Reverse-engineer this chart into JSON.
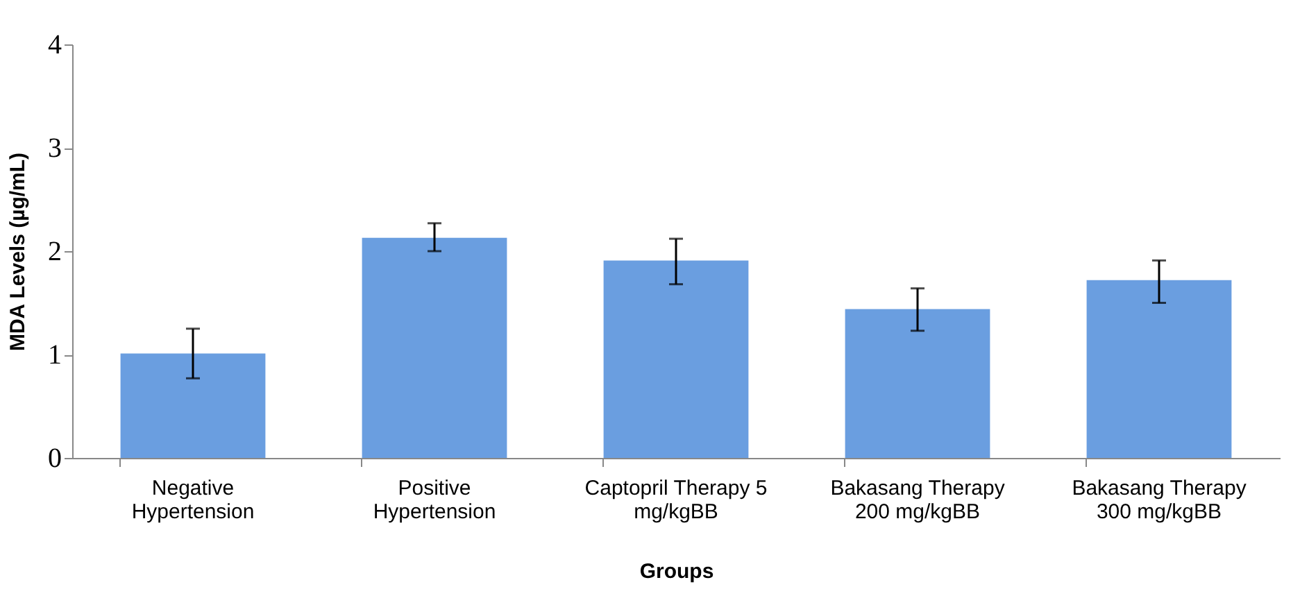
{
  "chart_data": {
    "type": "bar",
    "xlabel": "Groups",
    "ylabel": "MDA Levels (µg/mL)",
    "categories": [
      "Negative Hypertension",
      "Positive Hypertension",
      "Captopril Therapy 5 mg/kgBB",
      "Bakasang Therapy 200 mg/kgBB",
      "Bakasang Therapy 300 mg/kgBB"
    ],
    "values": [
      1.01,
      2.13,
      1.91,
      1.44,
      1.72
    ],
    "errors": [
      [
        0.77,
        1.25
      ],
      [
        2.0,
        2.27
      ],
      [
        1.68,
        2.12
      ],
      [
        1.23,
        1.64
      ],
      [
        1.5,
        1.91
      ]
    ],
    "color": "#6a9ee0",
    "ylim": [
      0,
      4
    ],
    "yticks": [
      0,
      1,
      2,
      3,
      4
    ],
    "grid": false
  }
}
